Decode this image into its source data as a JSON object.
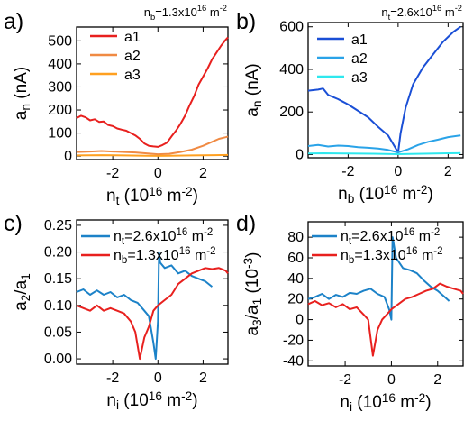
{
  "chart_data": [
    {
      "type": "line",
      "panel_label": "a)",
      "annotation": "n_b=1.3x10^16 m^-2",
      "xlabel": "n_t (10^16 m^-2)",
      "ylabel": "a_n (nA)",
      "xlim": [
        -3.6,
        3.1
      ],
      "ylim": [
        -15,
        560
      ],
      "xticks": [
        -2,
        0,
        2
      ],
      "yticks": [
        0,
        100,
        200,
        300,
        400,
        500
      ],
      "legend_position": "top-left",
      "series": [
        {
          "name": "a1",
          "color": "#e8201e",
          "x": [
            -3.6,
            -3.4,
            -3.2,
            -3.0,
            -2.8,
            -2.6,
            -2.4,
            -2.2,
            -2.0,
            -1.8,
            -1.6,
            -1.4,
            -1.2,
            -1.0,
            -0.8,
            -0.6,
            -0.4,
            -0.2,
            0.0,
            0.2,
            0.4,
            0.6,
            0.8,
            1.0,
            1.2,
            1.4,
            1.6,
            1.8,
            2.0,
            2.2,
            2.4,
            2.6,
            2.8,
            3.0,
            3.1
          ],
          "y": [
            165,
            175,
            168,
            155,
            160,
            148,
            150,
            135,
            130,
            120,
            115,
            110,
            100,
            90,
            75,
            55,
            45,
            42,
            40,
            48,
            58,
            85,
            110,
            140,
            175,
            220,
            260,
            310,
            345,
            380,
            420,
            450,
            480,
            505,
            515
          ]
        },
        {
          "name": "a2",
          "color": "#f08a43",
          "x": [
            -3.6,
            -3.0,
            -2.5,
            -2.0,
            -1.5,
            -1.0,
            -0.5,
            0.0,
            0.5,
            1.0,
            1.5,
            2.0,
            2.4,
            2.7,
            3.0,
            3.1
          ],
          "y": [
            18,
            20,
            22,
            20,
            18,
            16,
            12,
            8,
            10,
            18,
            28,
            45,
            62,
            75,
            82,
            85
          ]
        },
        {
          "name": "a3",
          "color": "#ffa020",
          "x": [
            -3.6,
            -2.5,
            -1.5,
            -0.5,
            0.0,
            0.5,
            1.5,
            2.5,
            3.1
          ],
          "y": [
            3,
            4,
            3,
            2,
            1,
            2,
            3,
            4,
            5
          ]
        }
      ]
    },
    {
      "type": "line",
      "panel_label": "b)",
      "annotation": "n_t=2.6x10^16 m^-2",
      "xlabel": "n_b (10^16 m^-2)",
      "ylabel": "a_n (nA)",
      "xlim": [
        -3.6,
        2.6
      ],
      "ylim": [
        -15,
        620
      ],
      "xticks": [
        -2,
        0,
        2
      ],
      "yticks": [
        0,
        200,
        400,
        600
      ],
      "legend_position": "top-left",
      "series": [
        {
          "name": "a1",
          "color": "#1a4fd6",
          "x": [
            -3.6,
            -3.2,
            -3.0,
            -2.8,
            -2.4,
            -2.0,
            -1.6,
            -1.2,
            -0.8,
            -0.4,
            -0.2,
            0.0,
            0.1,
            0.3,
            0.6,
            1.0,
            1.4,
            1.8,
            2.2,
            2.5
          ],
          "y": [
            300,
            305,
            310,
            280,
            260,
            235,
            205,
            175,
            130,
            90,
            50,
            10,
            100,
            220,
            330,
            410,
            470,
            530,
            575,
            600
          ]
        },
        {
          "name": "a2",
          "color": "#2aa3e8",
          "x": [
            -3.6,
            -3.2,
            -2.8,
            -2.4,
            -2.0,
            -1.6,
            -1.2,
            -0.8,
            -0.4,
            0.0,
            0.4,
            0.8,
            1.2,
            1.6,
            2.0,
            2.5
          ],
          "y": [
            40,
            45,
            38,
            42,
            40,
            35,
            32,
            28,
            22,
            10,
            25,
            45,
            60,
            70,
            82,
            90
          ]
        },
        {
          "name": "a3",
          "color": "#2ee8ee",
          "x": [
            -3.6,
            -3.0,
            -2.0,
            -1.0,
            0.0,
            1.0,
            2.0,
            2.5
          ],
          "y": [
            5,
            6,
            5,
            4,
            2,
            4,
            6,
            7
          ]
        }
      ]
    },
    {
      "type": "line",
      "panel_label": "c)",
      "xlabel": "n_i (10^16 m^-2)",
      "ylabel": "a_2/a_1",
      "xlim": [
        -3.6,
        3.1
      ],
      "ylim": [
        -0.01,
        0.26
      ],
      "xticks": [
        -2,
        0,
        2
      ],
      "yticks": [
        0.0,
        0.05,
        0.1,
        0.15,
        0.2,
        0.25
      ],
      "legend_position": "top",
      "series": [
        {
          "name": "n_t=2.6x10^16 m^-2",
          "color": "#1c82c8",
          "x": [
            -3.6,
            -3.3,
            -3.0,
            -2.7,
            -2.4,
            -2.1,
            -1.8,
            -1.5,
            -1.2,
            -0.9,
            -0.6,
            -0.4,
            -0.2,
            -0.1,
            0.0,
            0.05,
            0.1,
            0.3,
            0.6,
            0.9,
            1.2,
            1.5,
            1.8,
            2.1,
            2.4
          ],
          "y": [
            0.125,
            0.13,
            0.12,
            0.128,
            0.12,
            0.125,
            0.115,
            0.12,
            0.11,
            0.105,
            0.09,
            0.08,
            0.03,
            0.0,
            0.07,
            0.2,
            0.18,
            0.17,
            0.175,
            0.16,
            0.165,
            0.155,
            0.15,
            0.145,
            0.135
          ]
        },
        {
          "name": "n_b=1.3x10^16 m^-2",
          "color": "#e8201e",
          "x": [
            -3.6,
            -3.3,
            -3.0,
            -2.7,
            -2.4,
            -2.1,
            -1.8,
            -1.5,
            -1.2,
            -1.0,
            -0.8,
            -0.6,
            -0.4,
            -0.2,
            0.0,
            0.3,
            0.6,
            0.9,
            1.2,
            1.5,
            1.8,
            2.1,
            2.4,
            2.7,
            3.0,
            3.1
          ],
          "y": [
            0.1,
            0.095,
            0.09,
            0.1,
            0.09,
            0.095,
            0.09,
            0.085,
            0.07,
            0.05,
            0.0,
            0.04,
            0.06,
            0.09,
            0.1,
            0.11,
            0.12,
            0.14,
            0.15,
            0.16,
            0.165,
            0.17,
            0.168,
            0.17,
            0.165,
            0.16
          ]
        }
      ]
    },
    {
      "type": "line",
      "panel_label": "d)",
      "xlabel": "n_i (10^16 m^-2)",
      "ylabel": "a_3/a_1 (10^-3)",
      "xlim": [
        -3.6,
        3.1
      ],
      "ylim": [
        -45,
        95
      ],
      "xticks": [
        -2,
        0,
        2
      ],
      "yticks": [
        -40,
        -20,
        0,
        20,
        40,
        60,
        80
      ],
      "legend_position": "top",
      "series": [
        {
          "name": "n_t=2.6x10^16 m^-2",
          "color": "#1c82c8",
          "x": [
            -3.6,
            -3.3,
            -3.0,
            -2.7,
            -2.4,
            -2.1,
            -1.8,
            -1.5,
            -1.2,
            -0.9,
            -0.6,
            -0.3,
            -0.1,
            0.0,
            0.05,
            0.2,
            0.5,
            0.8,
            1.1,
            1.4,
            1.7,
            2.0,
            2.3,
            2.5
          ],
          "y": [
            20,
            22,
            25,
            20,
            24,
            22,
            26,
            25,
            28,
            30,
            25,
            22,
            10,
            0,
            80,
            60,
            50,
            48,
            45,
            38,
            32,
            28,
            22,
            18
          ]
        },
        {
          "name": "n_b=1.3x10^16 m^-2",
          "color": "#e8201e",
          "x": [
            -3.6,
            -3.3,
            -3.0,
            -2.7,
            -2.4,
            -2.1,
            -1.8,
            -1.5,
            -1.2,
            -1.0,
            -0.8,
            -0.6,
            -0.4,
            -0.2,
            0.0,
            0.3,
            0.6,
            0.9,
            1.2,
            1.5,
            1.8,
            2.1,
            2.4,
            2.7,
            3.0,
            3.1
          ],
          "y": [
            15,
            18,
            14,
            16,
            12,
            15,
            10,
            12,
            5,
            0,
            -35,
            -10,
            0,
            5,
            10,
            15,
            20,
            22,
            25,
            28,
            30,
            35,
            32,
            30,
            28,
            25
          ]
        }
      ]
    }
  ]
}
